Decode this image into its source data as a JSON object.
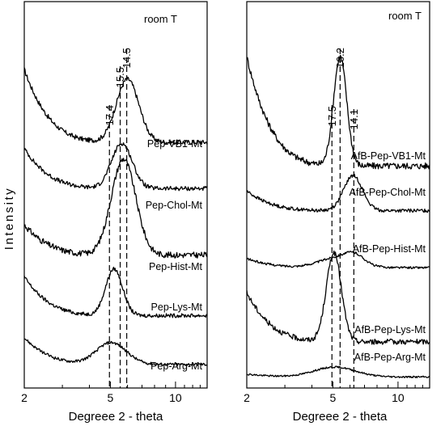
{
  "chart_data": [
    {
      "type": "line",
      "panel": "left",
      "annotation": "room T",
      "xlabel": "Degreee 2 - theta",
      "ylabel": "Intensity",
      "xscale": "log",
      "xlim": [
        2,
        14
      ],
      "xticks": [
        2,
        5,
        10
      ],
      "peak_markers": [
        {
          "x": 4.95,
          "label": "17.4"
        },
        {
          "x": 5.55,
          "label": "15.5"
        },
        {
          "x": 5.95,
          "label": "14.5"
        }
      ],
      "series": [
        {
          "name": "Pep-VB1-Mt",
          "peaks": [
            {
              "x": 6.0,
              "h": 0.78,
              "w": 0.12
            }
          ],
          "baseline_end": 0.02,
          "low_angle": 0.9
        },
        {
          "name": "Pep-Chol-Mt",
          "peaks": [
            {
              "x": 5.65,
              "h": 0.62,
              "w": 0.11
            }
          ],
          "baseline_end": 0.02,
          "low_angle": 0.55
        },
        {
          "name": "Pep-Hist-Mt",
          "peaks": [
            {
              "x": 5.75,
              "h": 0.95,
              "w": 0.13
            }
          ],
          "baseline_end": 0.02,
          "low_angle": 0.3
        },
        {
          "name": "Pep-Lys-Mt",
          "peaks": [
            {
              "x": 5.2,
              "h": 0.72,
              "w": 0.09
            }
          ],
          "baseline_end": 0.02,
          "low_angle": 0.6
        },
        {
          "name": "Pep-Arg-Mt",
          "peaks": [
            {
              "x": 5.05,
              "h": 0.45,
              "w": 0.16
            }
          ],
          "baseline_end": 0.02,
          "low_angle": 0.55
        }
      ]
    },
    {
      "type": "line",
      "panel": "right",
      "annotation": "room T",
      "xlabel": "Degreee 2 - theta",
      "xscale": "log",
      "xlim": [
        2,
        14
      ],
      "xticks": [
        2,
        5,
        10
      ],
      "peak_markers": [
        {
          "x": 4.95,
          "label": "17.5"
        },
        {
          "x": 5.4,
          "label": "16.2"
        },
        {
          "x": 6.25,
          "label": "14.1"
        }
      ],
      "series": [
        {
          "name": "AfB-Pep-VB1-Mt",
          "peaks": [
            {
              "x": 5.4,
              "h": 1.0,
              "w": 0.07
            }
          ],
          "baseline_end": 0.02,
          "low_angle": 1.0
        },
        {
          "name": "AfB-Pep-Chol-Mt",
          "peaks": [
            {
              "x": 6.2,
              "h": 0.62,
              "w": 0.1
            }
          ],
          "baseline_end": 0.02,
          "low_angle": 0.35
        },
        {
          "name": "AfB-Pep-Hist-Mt",
          "peaks": [
            {
              "x": 5.3,
              "h": 0.28,
              "w": 0.2
            },
            {
              "x": 6.3,
              "h": 0.22,
              "w": 0.1
            }
          ],
          "baseline_end": 0.02,
          "low_angle": 0.25
        },
        {
          "name": "AfB-Pep-Lys-Mt",
          "peaks": [
            {
              "x": 5.05,
              "h": 1.0,
              "w": 0.08
            }
          ],
          "baseline_end": 0.02,
          "low_angle": 0.55
        },
        {
          "name": "AfB-Pep-Arg-Mt",
          "peaks": [
            {
              "x": 5.1,
              "h": 0.35,
              "w": 0.22
            }
          ],
          "baseline_end": 0.02,
          "low_angle": 0.1
        }
      ]
    }
  ]
}
